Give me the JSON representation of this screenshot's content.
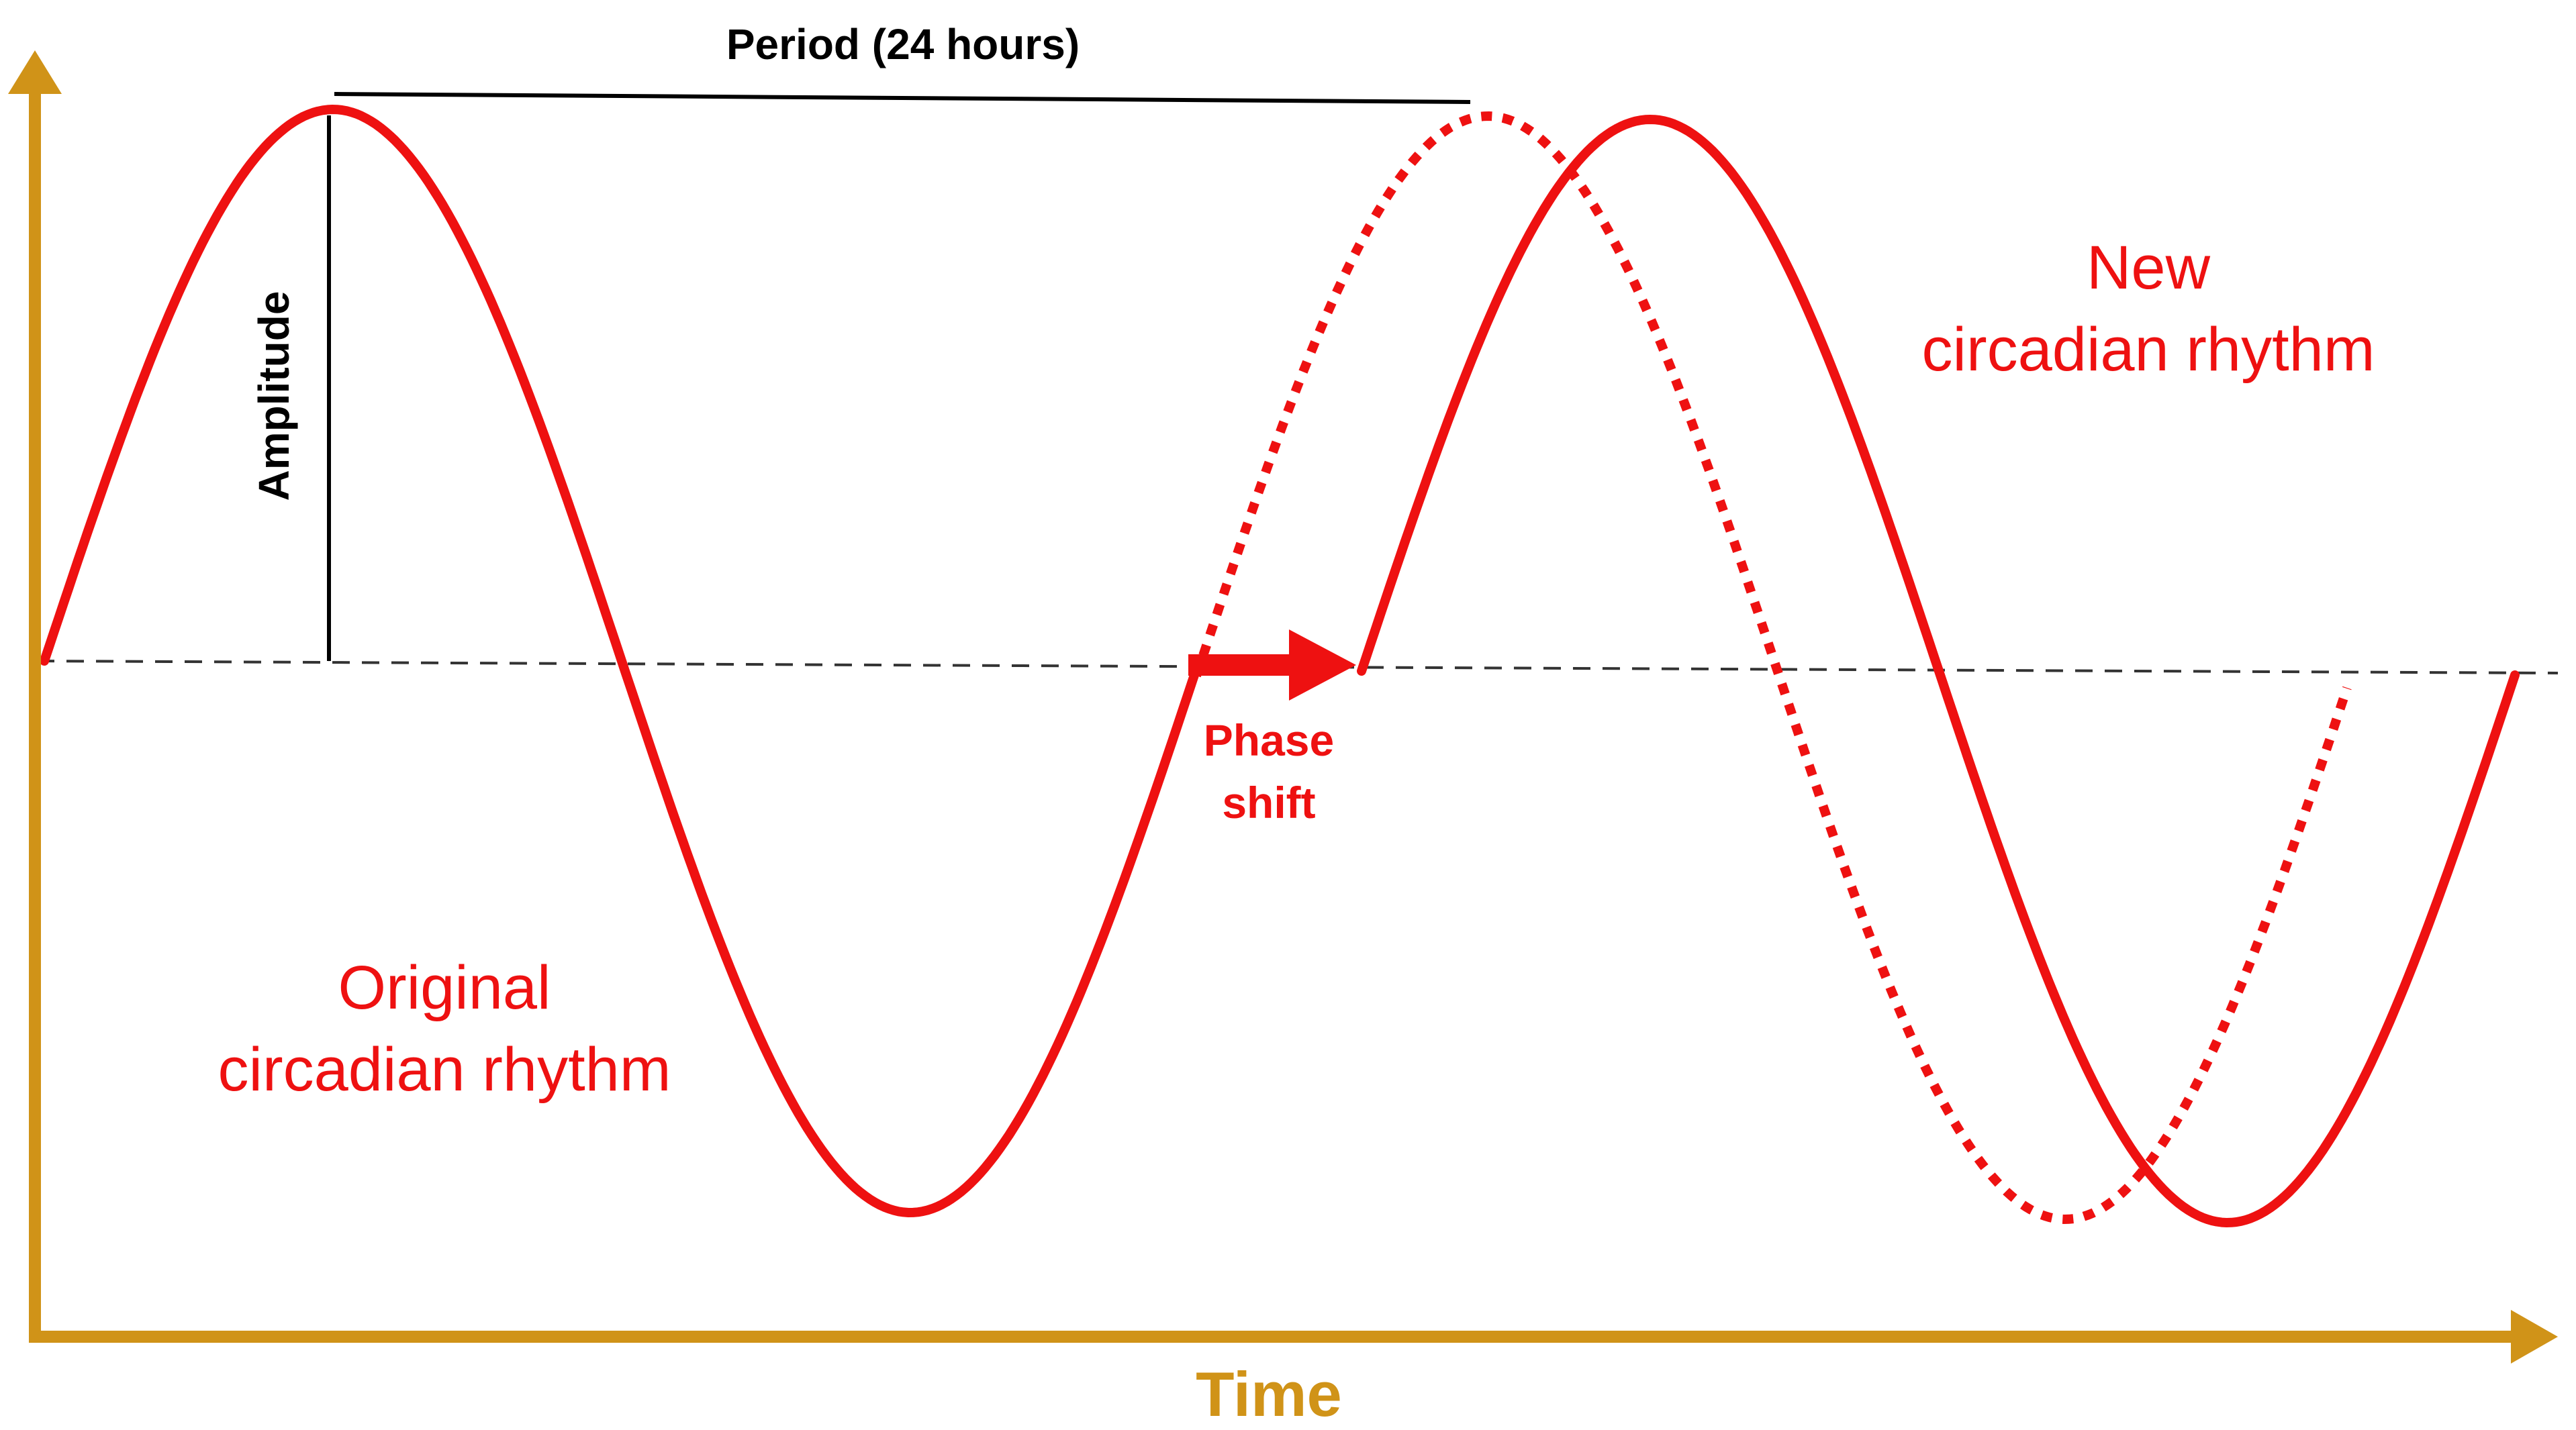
{
  "labels": {
    "period": "Period (24 hours)",
    "amplitude": "Amplitude",
    "phase_shift_line1": "Phase",
    "phase_shift_line2": "shift",
    "original_line1": "Original",
    "original_line2": "circadian rhythm",
    "new_line1": "New",
    "new_line2": "circadian rhythm",
    "x_axis": "Time"
  },
  "colors": {
    "axis": "#d09318",
    "curve": "#ee1111",
    "baseline": "#333333",
    "annotation": "#000000"
  },
  "icons": {
    "y_axis_arrow": "up-arrow-icon",
    "x_axis_arrow": "right-arrow-icon",
    "phase_shift_arrow": "right-arrow-icon"
  }
}
